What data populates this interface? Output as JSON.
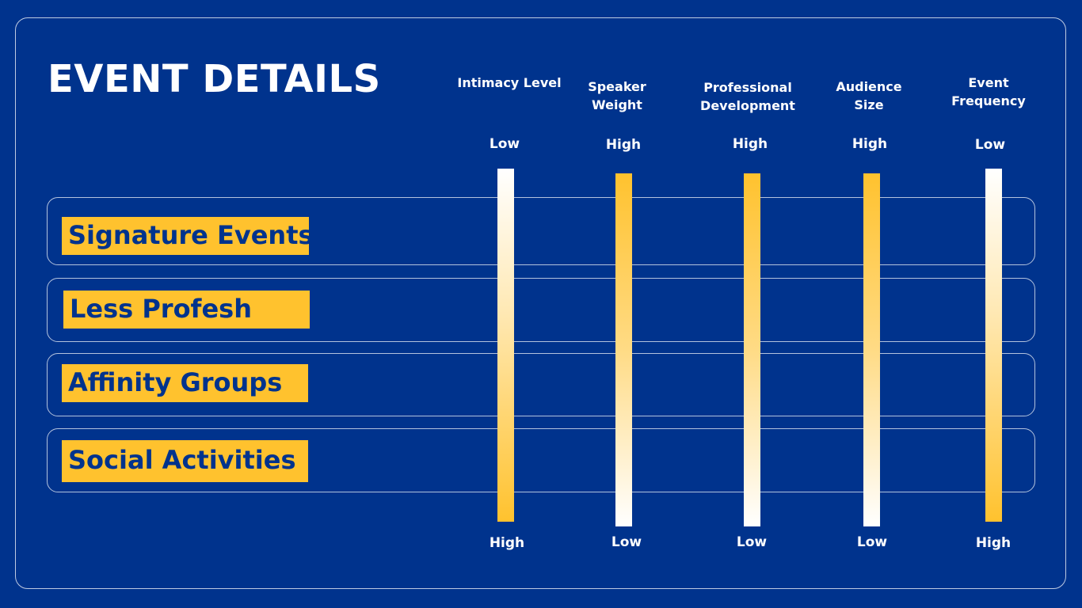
{
  "title": "EVENT DETAILS",
  "colors": {
    "background": "#00338D",
    "accent": "#FFC22E",
    "text": "#FFFFFF"
  },
  "rows": [
    {
      "label": "Signature Events"
    },
    {
      "label": "Less Profesh"
    },
    {
      "label": "Affinity Groups"
    },
    {
      "label": "Social Activities"
    }
  ],
  "columns": [
    {
      "header": "Intimacy Level",
      "top": "Low",
      "bottom": "High",
      "direction": "low-to-high"
    },
    {
      "header": "Speaker Weight",
      "top": "High",
      "bottom": "Low",
      "direction": "high-to-low"
    },
    {
      "header": "Professional Development",
      "top": "High",
      "bottom": "Low",
      "direction": "high-to-low"
    },
    {
      "header": "Audience Size",
      "top": "High",
      "bottom": "Low",
      "direction": "high-to-low"
    },
    {
      "header": "Event Frequency",
      "top": "Low",
      "bottom": "High",
      "direction": "low-to-high"
    }
  ]
}
